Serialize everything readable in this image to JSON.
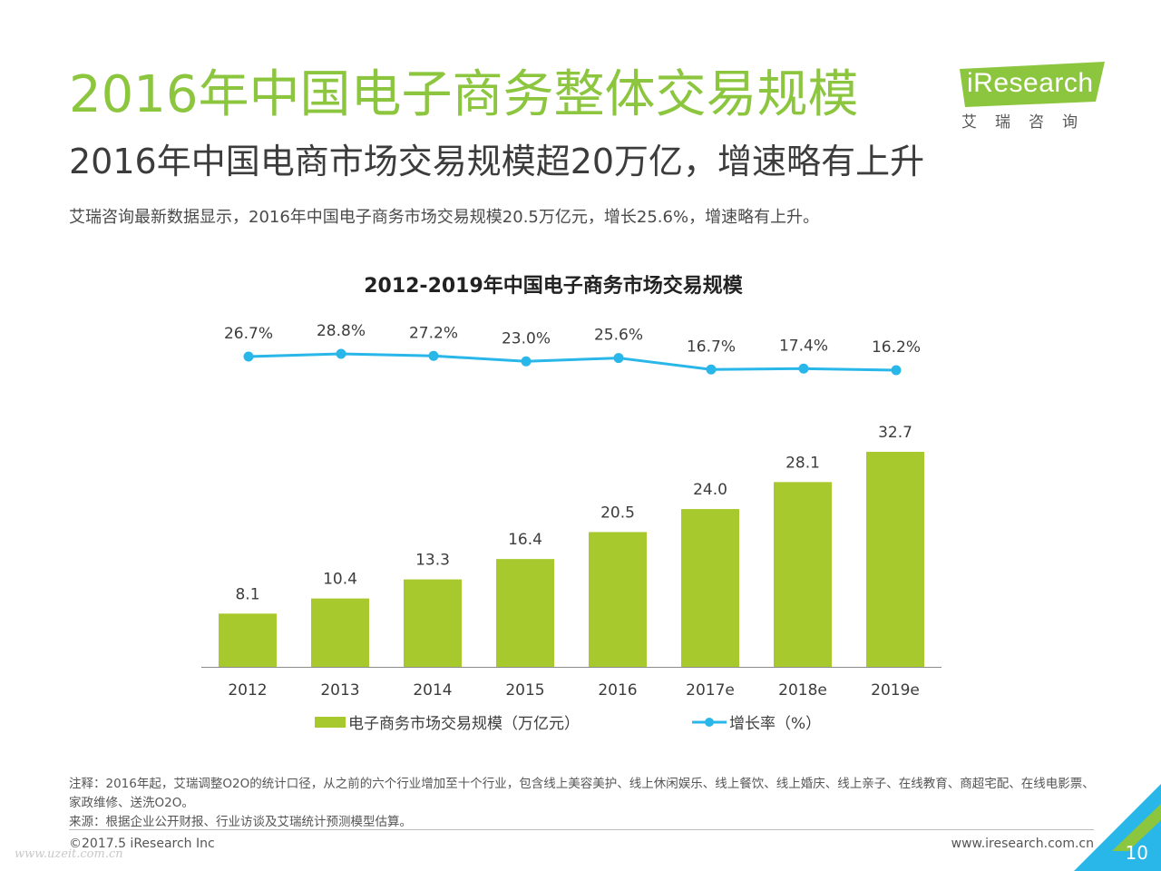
{
  "header": {
    "title": "2016年中国电子商务整体交易规模",
    "subtitle": "2016年中国电商市场交易规模超20万亿，增速略有上升",
    "description": "艾瑞咨询最新数据显示，2016年中国电子商务市场交易规模20.5万亿元，增长25.6%，增速略有上升。"
  },
  "logo": {
    "word": "iResearch",
    "sub": "艾瑞咨询"
  },
  "chart_data": {
    "type": "bar",
    "title": "2012-2019年中国电子商务市场交易规模",
    "xlabel": "",
    "ylabel": "",
    "categories": [
      "2012",
      "2013",
      "2014",
      "2015",
      "2016",
      "2017e",
      "2018e",
      "2019e"
    ],
    "series": [
      {
        "name": "电子商务市场交易规模（万亿元）",
        "type": "bar",
        "values": [
          8.1,
          10.4,
          13.3,
          16.4,
          20.5,
          24.0,
          28.1,
          32.7
        ],
        "labels": [
          "8.1",
          "10.4",
          "13.3",
          "16.4",
          "20.5",
          "24.0",
          "28.1",
          "32.7"
        ],
        "color": "#a8c92e"
      },
      {
        "name": "增长率（%）",
        "type": "line",
        "values": [
          26.7,
          28.8,
          27.2,
          23.0,
          25.6,
          16.7,
          17.4,
          16.2
        ],
        "labels": [
          "26.7%",
          "28.8%",
          "27.2%",
          "23.0%",
          "25.6%",
          "16.7%",
          "17.4%",
          "16.2%"
        ],
        "color": "#29b6e8"
      }
    ],
    "legend": "bottom",
    "grid": false
  },
  "footer": {
    "note": "注释：2016年起，艾瑞调整O2O的统计口径，从之前的六个行业增加至十个行业，包含线上美容美护、线上休闲娱乐、线上餐饮、线上婚庆、线上亲子、在线教育、商超宅配、在线电影票、家政维修、送洗O2O。",
    "source": "来源：根据企业公开财报、行业访谈及艾瑞统计预测模型估算。",
    "copyright": "©2017.5 iResearch Inc",
    "website": "www.iresearch.com.cn",
    "page_number": "10",
    "watermark": "www.uzeit.com.cn"
  },
  "colors": {
    "brand_green": "#8cc63f",
    "bar_green": "#a8c92e",
    "line_blue": "#29b6e8",
    "corner_blue": "#29b6e8"
  }
}
